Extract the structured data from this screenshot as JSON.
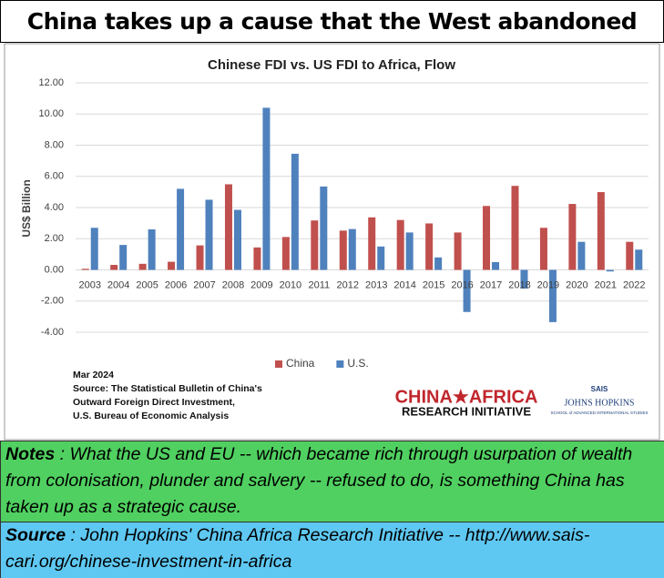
{
  "header": {
    "title": "China takes up a cause that the West abandoned"
  },
  "chart_data": {
    "type": "bar",
    "title": "Chinese FDI vs. US FDI to Africa, Flow",
    "y_label": "US$ Billion",
    "categories": [
      "2003",
      "2004",
      "2005",
      "2006",
      "2007",
      "2008",
      "2009",
      "2010",
      "2011",
      "2012",
      "2013",
      "2014",
      "2015",
      "2016",
      "2017",
      "2018",
      "2019",
      "2020",
      "2021",
      "2022"
    ],
    "series": [
      {
        "name": "China",
        "color": "#c0504d",
        "values": [
          0.07,
          0.32,
          0.39,
          0.52,
          1.57,
          5.49,
          1.44,
          2.11,
          3.17,
          2.52,
          3.37,
          3.2,
          2.98,
          2.4,
          4.1,
          5.39,
          2.7,
          4.23,
          4.99,
          1.8
        ]
      },
      {
        "name": "U.S.",
        "color": "#4f81bd",
        "values": [
          2.7,
          1.6,
          2.6,
          5.2,
          4.5,
          3.85,
          10.4,
          7.45,
          5.35,
          2.62,
          1.5,
          2.4,
          0.8,
          -2.7,
          0.5,
          -1.2,
          -3.35,
          1.8,
          -0.1,
          1.3
        ]
      }
    ],
    "ylim": [
      -4,
      12
    ],
    "yticks": [
      {
        "value": -4,
        "label": "-4.00"
      },
      {
        "value": -2,
        "label": "-2.00"
      },
      {
        "value": 0,
        "label": "0.00"
      },
      {
        "value": 2,
        "label": "2.00"
      },
      {
        "value": 4,
        "label": "4.00"
      },
      {
        "value": 6,
        "label": "6.00"
      },
      {
        "value": 8,
        "label": "8.00"
      },
      {
        "value": 10,
        "label": "10.00"
      },
      {
        "value": 12,
        "label": "12.00"
      }
    ],
    "grid": true,
    "legend": "bottom",
    "footnote": [
      "Mar 2024",
      "Source: The Statistical Bulletin of China's",
      "Outward Foreign Direct Investment,",
      "U.S. Bureau of Economic Analysis"
    ],
    "logos": {
      "cari": [
        "CHINA★AFRICA",
        "RESEARCH INITIATIVE"
      ],
      "jhu": [
        "SAIS",
        "JOHNS HOPKINS",
        "SCHOOL of ADVANCED INTERNATIONAL STUDIES"
      ]
    }
  },
  "notes": {
    "label": "Notes",
    "text": ":  What the US and EU -- which became rich through usurpation of wealth from colonisation, plunder and salvery -- refused to do, is something China has taken up as a strategic cause."
  },
  "source": {
    "label": "Source",
    "text": ": John Hopkins' China Africa Research Initiative --  http://www.sais-cari.org/chinese-investment-in-africa"
  }
}
